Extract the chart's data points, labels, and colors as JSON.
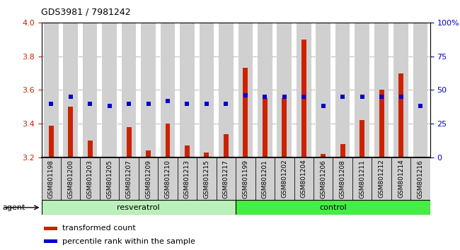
{
  "title": "GDS3981 / 7981242",
  "samples": [
    "GSM801198",
    "GSM801200",
    "GSM801203",
    "GSM801205",
    "GSM801207",
    "GSM801209",
    "GSM801210",
    "GSM801213",
    "GSM801215",
    "GSM801217",
    "GSM801199",
    "GSM801201",
    "GSM801202",
    "GSM801204",
    "GSM801206",
    "GSM801208",
    "GSM801211",
    "GSM801212",
    "GSM801214",
    "GSM801216"
  ],
  "transformed_count": [
    3.39,
    3.5,
    3.3,
    3.2,
    3.38,
    3.24,
    3.4,
    3.27,
    3.23,
    3.34,
    3.73,
    3.55,
    3.55,
    3.9,
    3.22,
    3.28,
    3.42,
    3.6,
    3.7,
    3.2
  ],
  "percentile_rank": [
    40,
    45,
    40,
    38,
    40,
    40,
    42,
    40,
    40,
    40,
    46,
    45,
    45,
    45,
    38,
    45,
    45,
    45,
    45,
    38
  ],
  "group_resveratrol": 10,
  "group_control": 10,
  "ylim": [
    3.2,
    4.0
  ],
  "y2lim": [
    0,
    100
  ],
  "yticks": [
    3.2,
    3.4,
    3.6,
    3.8,
    4.0
  ],
  "y2ticks": [
    0,
    25,
    50,
    75,
    100
  ],
  "bar_color": "#cc2200",
  "dot_color": "#0000cc",
  "resveratrol_color": "#bbf0bb",
  "control_color": "#44ee44",
  "agent_label": "agent",
  "resveratrol_label": "resveratrol",
  "control_label": "control",
  "legend1": "transformed count",
  "legend2": "percentile rank within the sample",
  "bar_bg": "#d0d0d0",
  "bar_width": 0.75,
  "red_bar_width": 0.25
}
